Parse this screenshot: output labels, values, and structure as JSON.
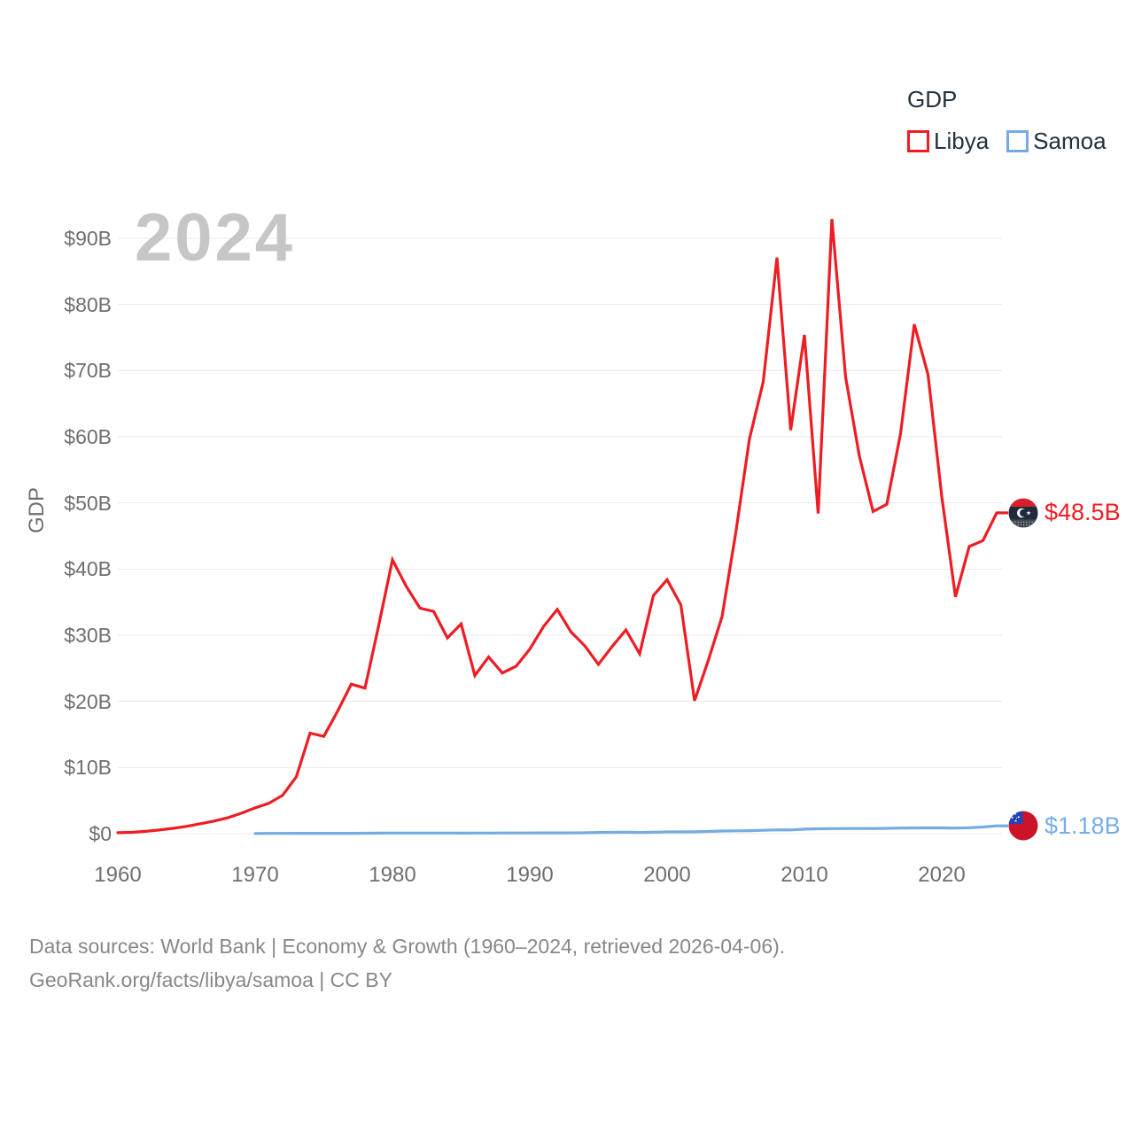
{
  "watermark": {
    "text": "2024"
  },
  "legend": {
    "title": "GDP",
    "items": [
      {
        "label": "Libya",
        "color": "#ee1c23"
      },
      {
        "label": "Samoa",
        "color": "#74abe2"
      }
    ]
  },
  "axes": {
    "y_title": "GDP",
    "y_ticks": [
      {
        "label": "$0",
        "value": 0
      },
      {
        "label": "$10B",
        "value": 10
      },
      {
        "label": "$20B",
        "value": 20
      },
      {
        "label": "$30B",
        "value": 30
      },
      {
        "label": "$40B",
        "value": 40
      },
      {
        "label": "$50B",
        "value": 50
      },
      {
        "label": "$60B",
        "value": 60
      },
      {
        "label": "$70B",
        "value": 70
      },
      {
        "label": "$80B",
        "value": 80
      },
      {
        "label": "$90B",
        "value": 90
      }
    ],
    "x_ticks": [
      {
        "label": "1960",
        "value": 1960
      },
      {
        "label": "1970",
        "value": 1970
      },
      {
        "label": "1980",
        "value": 1980
      },
      {
        "label": "1990",
        "value": 1990
      },
      {
        "label": "2000",
        "value": 2000
      },
      {
        "label": "2010",
        "value": 2010
      },
      {
        "label": "2020",
        "value": 2020
      }
    ]
  },
  "end_labels": [
    {
      "series": "Libya",
      "text": "$48.5B",
      "value": 48.5,
      "color": "#ee1c23",
      "flag": "libya-flag-icon"
    },
    {
      "series": "Samoa",
      "text": "$1.18B",
      "value": 1.18,
      "color": "#76ade8",
      "flag": "samoa-flag-icon"
    }
  ],
  "footer": {
    "line1": "Data sources: World Bank | Economy & Growth (1960–2024, retrieved 2026-04-06).",
    "line2": "GeoRank.org/facts/libya/samoa | CC BY"
  },
  "colors": {
    "libya": "#ee1c23",
    "samoa": "#74abe2",
    "grid": "#e8e8e8",
    "axis_text": "#6e6e6e",
    "legend_text": "#22303f",
    "watermark": "#c6c6c6",
    "footer_text": "#878787"
  },
  "chart_data": {
    "type": "line",
    "title": "GDP",
    "watermark_year": "2024",
    "xlabel": "",
    "ylabel": "GDP",
    "xlim": [
      1958.5,
      2026
    ],
    "ylim": [
      0,
      95
    ],
    "grid": "horizontal-only",
    "legend_position": "top-right",
    "series": [
      {
        "name": "Libya",
        "color": "#ee1c23",
        "end_label": "$48.5B",
        "x": [
          1960,
          1961,
          1962,
          1963,
          1964,
          1965,
          1966,
          1967,
          1968,
          1969,
          1970,
          1971,
          1972,
          1973,
          1974,
          1975,
          1976,
          1977,
          1978,
          1979,
          1980,
          1981,
          1982,
          1983,
          1984,
          1985,
          1986,
          1987,
          1988,
          1989,
          1990,
          1991,
          1992,
          1993,
          1994,
          1995,
          1996,
          1997,
          1998,
          1999,
          2000,
          2001,
          2002,
          2003,
          2004,
          2005,
          2006,
          2007,
          2008,
          2009,
          2010,
          2011,
          2012,
          2013,
          2014,
          2015,
          2016,
          2017,
          2018,
          2019,
          2020,
          2021,
          2022,
          2023,
          2024
        ],
        "values": [
          0.15,
          0.2,
          0.35,
          0.55,
          0.8,
          1.1,
          1.5,
          1.9,
          2.4,
          3.1,
          3.9,
          4.6,
          5.8,
          8.6,
          15.2,
          14.7,
          18.5,
          22.6,
          22.0,
          31.5,
          41.4,
          37.4,
          34.1,
          33.6,
          29.6,
          31.7,
          23.9,
          26.7,
          24.3,
          25.3,
          27.9,
          31.3,
          33.9,
          30.5,
          28.4,
          25.6,
          28.3,
          30.8,
          27.2,
          36.0,
          38.4,
          34.6,
          20.1,
          26.2,
          32.8,
          45.5,
          59.7,
          68.3,
          87.1,
          61.0,
          75.4,
          48.4,
          92.9,
          69.0,
          57.1,
          48.7,
          49.8,
          60.5,
          77.0,
          69.4,
          51.0,
          35.8,
          43.4,
          44.3,
          48.5
        ]
      },
      {
        "name": "Samoa",
        "color": "#74abe2",
        "end_label": "$1.18B",
        "x": [
          1970,
          1971,
          1972,
          1973,
          1974,
          1975,
          1976,
          1977,
          1978,
          1979,
          1980,
          1981,
          1982,
          1983,
          1984,
          1985,
          1986,
          1987,
          1988,
          1989,
          1990,
          1991,
          1992,
          1993,
          1994,
          1995,
          1996,
          1997,
          1998,
          1999,
          2000,
          2001,
          2002,
          2003,
          2004,
          2005,
          2006,
          2007,
          2008,
          2009,
          2010,
          2011,
          2012,
          2013,
          2014,
          2015,
          2016,
          2017,
          2018,
          2019,
          2020,
          2021,
          2022,
          2023,
          2024
        ],
        "values": [
          0.03,
          0.04,
          0.04,
          0.05,
          0.06,
          0.06,
          0.06,
          0.06,
          0.07,
          0.08,
          0.09,
          0.09,
          0.1,
          0.09,
          0.09,
          0.08,
          0.09,
          0.1,
          0.11,
          0.11,
          0.11,
          0.12,
          0.12,
          0.12,
          0.13,
          0.19,
          0.2,
          0.21,
          0.19,
          0.22,
          0.27,
          0.27,
          0.28,
          0.33,
          0.4,
          0.43,
          0.46,
          0.51,
          0.57,
          0.56,
          0.68,
          0.74,
          0.77,
          0.78,
          0.78,
          0.78,
          0.8,
          0.84,
          0.87,
          0.87,
          0.87,
          0.84,
          0.9,
          1.0,
          1.18
        ]
      }
    ]
  }
}
